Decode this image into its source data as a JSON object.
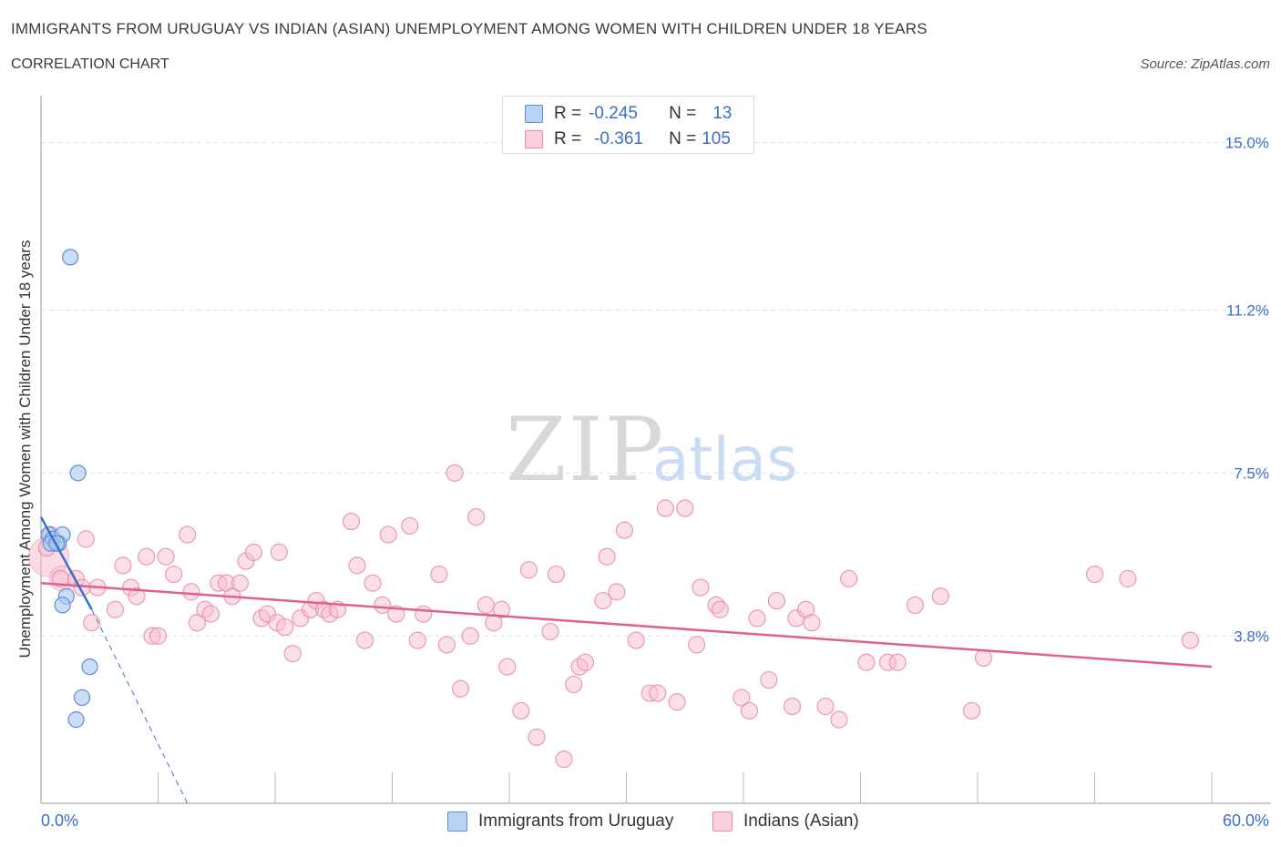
{
  "header": {
    "title": "IMMIGRANTS FROM URUGUAY VS INDIAN (ASIAN) UNEMPLOYMENT AMONG WOMEN WITH CHILDREN UNDER 18 YEARS",
    "subtitle": "CORRELATION CHART",
    "source": "Source: ZipAtlas.com"
  },
  "legend": {
    "series1": {
      "r_label": "R =",
      "r_value": "-0.245",
      "n_label": "N =",
      "n_value": "13"
    },
    "series2": {
      "r_label": "R =",
      "r_value": "-0.361",
      "n_label": "N =",
      "n_value": "105"
    }
  },
  "bottom_legend": {
    "series1": "Immigrants from Uruguay",
    "series2": "Indians (Asian)"
  },
  "colors": {
    "uruguay_fill": "#a9c8f0",
    "uruguay_stroke": "#5b8fd8",
    "uruguay_line": "#3b6fc9",
    "indian_fill": "#f7bfd0",
    "indian_stroke": "#e88aa8",
    "indian_line": "#e0608f",
    "axis_text": "#3b6fc9",
    "grid": "#dde3ea"
  },
  "chart_data": {
    "type": "scatter",
    "title": "IMMIGRANTS FROM URUGUAY VS INDIAN (ASIAN) UNEMPLOYMENT AMONG WOMEN WITH CHILDREN UNDER 18 YEARS",
    "xlabel": "",
    "ylabel": "Unemployment Among Women with Children Under 18 years",
    "xlim": [
      0,
      60
    ],
    "ylim": [
      0,
      15.8
    ],
    "x_tick_labels": [
      "0.0%",
      "60.0%"
    ],
    "y_ticks": [
      3.8,
      7.5,
      11.2,
      15.0
    ],
    "y_tick_labels": [
      "3.8%",
      "7.5%",
      "11.2%",
      "15.0%"
    ],
    "watermark": {
      "zip": "ZIP",
      "atlas": "atlas"
    },
    "series": [
      {
        "name": "Immigrants from Uruguay",
        "points": [
          [
            1.5,
            12.4
          ],
          [
            1.9,
            7.5
          ],
          [
            0.4,
            6.1
          ],
          [
            0.6,
            6.0
          ],
          [
            1.1,
            6.1
          ],
          [
            0.9,
            5.9
          ],
          [
            0.5,
            5.9
          ],
          [
            0.8,
            5.9
          ],
          [
            1.3,
            4.7
          ],
          [
            1.1,
            4.5
          ],
          [
            2.5,
            3.1
          ],
          [
            2.1,
            2.4
          ],
          [
            1.8,
            1.9
          ]
        ],
        "trend": {
          "x": [
            0,
            2.6
          ],
          "y": [
            6.5,
            4.4
          ],
          "dashed_extension": {
            "x": [
              2.6,
              7.5
            ],
            "y": [
              4.4,
              0
            ]
          }
        }
      },
      {
        "name": "Indians (Asian)",
        "points": [
          [
            0.3,
            5.8
          ],
          [
            0.5,
            6.1
          ],
          [
            1.0,
            5.1
          ],
          [
            1.8,
            5.1
          ],
          [
            2.1,
            4.9
          ],
          [
            2.9,
            4.9
          ],
          [
            2.6,
            4.1
          ],
          [
            3.8,
            4.4
          ],
          [
            4.2,
            5.4
          ],
          [
            4.6,
            4.9
          ],
          [
            4.9,
            4.7
          ],
          [
            5.4,
            5.6
          ],
          [
            5.7,
            3.8
          ],
          [
            6.0,
            3.8
          ],
          [
            6.4,
            5.6
          ],
          [
            6.8,
            5.2
          ],
          [
            7.5,
            6.1
          ],
          [
            7.7,
            4.8
          ],
          [
            8.0,
            4.1
          ],
          [
            8.4,
            4.4
          ],
          [
            8.7,
            4.3
          ],
          [
            9.1,
            5.0
          ],
          [
            9.5,
            5.0
          ],
          [
            9.8,
            4.7
          ],
          [
            10.2,
            5.0
          ],
          [
            10.5,
            5.5
          ],
          [
            10.9,
            5.7
          ],
          [
            11.3,
            4.2
          ],
          [
            11.6,
            4.3
          ],
          [
            12.2,
            5.7
          ],
          [
            12.1,
            4.1
          ],
          [
            12.5,
            4.0
          ],
          [
            12.9,
            3.4
          ],
          [
            13.3,
            4.2
          ],
          [
            13.8,
            4.4
          ],
          [
            14.1,
            4.6
          ],
          [
            14.5,
            4.4
          ],
          [
            14.8,
            4.3
          ],
          [
            15.2,
            4.4
          ],
          [
            15.9,
            6.4
          ],
          [
            16.2,
            5.4
          ],
          [
            16.6,
            3.7
          ],
          [
            17.0,
            5.0
          ],
          [
            17.5,
            4.5
          ],
          [
            17.8,
            6.1
          ],
          [
            18.2,
            4.3
          ],
          [
            18.9,
            6.3
          ],
          [
            19.3,
            3.7
          ],
          [
            19.6,
            4.3
          ],
          [
            20.4,
            5.2
          ],
          [
            20.8,
            3.6
          ],
          [
            21.2,
            7.5
          ],
          [
            21.5,
            2.6
          ],
          [
            22.0,
            3.8
          ],
          [
            22.3,
            6.5
          ],
          [
            22.8,
            4.5
          ],
          [
            23.2,
            4.1
          ],
          [
            23.6,
            4.4
          ],
          [
            23.9,
            3.1
          ],
          [
            24.6,
            2.1
          ],
          [
            25.0,
            5.3
          ],
          [
            25.4,
            1.5
          ],
          [
            26.1,
            3.9
          ],
          [
            26.4,
            5.2
          ],
          [
            26.8,
            1.0
          ],
          [
            27.3,
            2.7
          ],
          [
            27.6,
            3.1
          ],
          [
            27.9,
            3.2
          ],
          [
            28.8,
            4.6
          ],
          [
            29.0,
            5.6
          ],
          [
            29.5,
            4.8
          ],
          [
            29.9,
            6.2
          ],
          [
            30.5,
            3.7
          ],
          [
            31.2,
            2.5
          ],
          [
            31.6,
            2.5
          ],
          [
            32.0,
            6.7
          ],
          [
            32.6,
            2.3
          ],
          [
            33.0,
            6.7
          ],
          [
            33.6,
            3.6
          ],
          [
            33.8,
            4.9
          ],
          [
            34.6,
            4.5
          ],
          [
            34.8,
            4.4
          ],
          [
            35.9,
            2.4
          ],
          [
            36.3,
            2.1
          ],
          [
            36.7,
            4.2
          ],
          [
            37.3,
            2.8
          ],
          [
            37.7,
            4.6
          ],
          [
            38.5,
            2.2
          ],
          [
            38.7,
            4.2
          ],
          [
            39.2,
            4.4
          ],
          [
            39.5,
            4.1
          ],
          [
            40.2,
            2.2
          ],
          [
            40.9,
            1.9
          ],
          [
            41.4,
            5.1
          ],
          [
            42.3,
            3.2
          ],
          [
            43.4,
            3.2
          ],
          [
            43.9,
            3.2
          ],
          [
            44.8,
            4.5
          ],
          [
            46.1,
            4.7
          ],
          [
            47.7,
            2.1
          ],
          [
            48.3,
            3.3
          ],
          [
            54.0,
            5.2
          ],
          [
            55.7,
            5.1
          ],
          [
            58.9,
            3.7
          ],
          [
            2.3,
            6.0
          ]
        ],
        "trend": {
          "x": [
            0,
            60
          ],
          "y": [
            5.0,
            3.1
          ]
        }
      }
    ]
  }
}
